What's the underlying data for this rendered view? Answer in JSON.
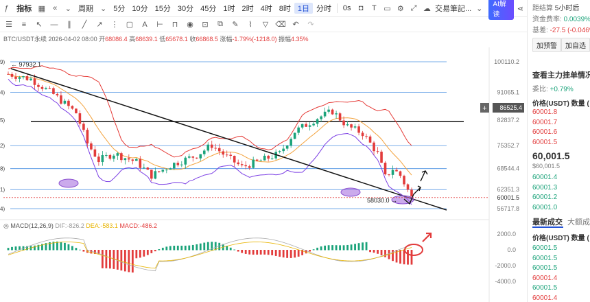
{
  "toolbar": {
    "indicator_label": "指标",
    "period_label": "周期",
    "periods": [
      "5分",
      "10分",
      "15分",
      "30分",
      "45分",
      "1时",
      "2时",
      "4时",
      "8时",
      "1日",
      "分时"
    ],
    "active_period": "1日",
    "seconds_label": "0s",
    "publish_label": "交易筆記...",
    "ai_label": "AI解读"
  },
  "symbol_info": {
    "symbol": "BTC/USDT永续",
    "date": "2026-04-02 08:00",
    "open_label": "开",
    "open": "68086.4",
    "high_label": "高",
    "high": "68639.1",
    "low_label": "低",
    "low": "65678.1",
    "close_label": "收",
    "close": "66868.5",
    "change_label": "涨幅",
    "change": "-1.79%(-1218.0)",
    "amp_label": "振幅",
    "amp": "4.35%"
  },
  "macd_info": {
    "name": "MACD(12,26,9)",
    "dif": "DIF:-826.2",
    "dea": "DEA:-583.1",
    "macd": "MACD:-486.2"
  },
  "price_axis": {
    "ticks": [
      "100110.2",
      "91065.1",
      "82837.2",
      "75352.7",
      "68544.4",
      "62351.3",
      "56717.8"
    ],
    "highlight": "86525.4",
    "current": "60001.5",
    "macd_ticks": [
      "2000.0",
      "0.0",
      "-2000.0",
      "-4000.0"
    ]
  },
  "chart_labels": {
    "high_mark": "97932.1",
    "low_mark": "58030.0",
    "left_fib_labels": [
      "9)",
      "4)",
      "5)",
      "2)",
      "8)",
      "1)",
      "4)"
    ]
  },
  "right_panel": {
    "settle_label": "距结算",
    "settle_value": "5小时后",
    "funding_label": "资金费率:",
    "funding_value": "0.0039%",
    "basis_label": "基差:",
    "basis_value": "-27.5 (-0.046%",
    "alert_button": "加预警",
    "watch_button": "加自选",
    "orderbook_link": "查看主力挂单情况",
    "ratio_label": "委比:",
    "ratio_value": "+0.79%",
    "book_header_price": "价格(USDT)",
    "book_header_qty": "数量 (",
    "asks": [
      "60001.8",
      "60001.7",
      "60001.6",
      "60001.5"
    ],
    "last_price": "60,001.5",
    "last_price_sub": "$60,001.5",
    "bids": [
      "60001.4",
      "60001.3",
      "60001.2",
      "60001.0"
    ],
    "trades_tab": "最新成交",
    "big_trades_tab": "大额成交",
    "trades_header_price": "价格(USDT)",
    "trades_header_qty": "数量 (",
    "trades": [
      {
        "price": "60001.5",
        "side": "buy"
      },
      {
        "price": "60001.5",
        "side": "buy"
      },
      {
        "price": "60001.5",
        "side": "buy"
      },
      {
        "price": "60001.4",
        "side": "sell"
      },
      {
        "price": "60001.5",
        "side": "buy"
      },
      {
        "price": "60001.4",
        "side": "sell"
      }
    ]
  },
  "colors": {
    "up": "#1ba37a",
    "down": "#e23b3b",
    "accent": "#2453d6"
  }
}
